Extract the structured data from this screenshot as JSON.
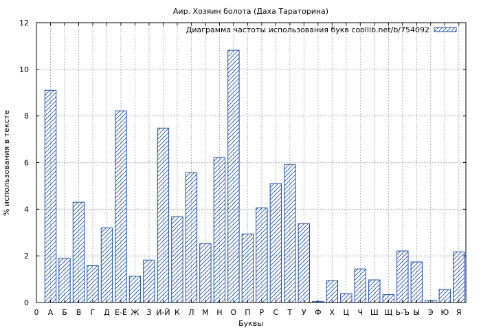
{
  "chart_data": {
    "type": "bar",
    "title": "Аир. Хозяин болота (Даха Тараторина)",
    "xlabel": "Буквы",
    "ylabel": "% использования в тексте",
    "ylim": [
      0,
      12
    ],
    "yticks": [
      0,
      2,
      4,
      6,
      8,
      10,
      12
    ],
    "grid": true,
    "legend_position": "top-right",
    "categories": [
      "0",
      "А",
      "Б",
      "В",
      "Г",
      "Д",
      "Е-Ё",
      "Ж",
      "З",
      "И-Й",
      "К",
      "Л",
      "М",
      "Н",
      "О",
      "П",
      "Р",
      "С",
      "Т",
      "У",
      "Ф",
      "Х",
      "Ц",
      "Ч",
      "Ш",
      "Щ",
      "Ь-Ъ",
      "Ы",
      "Э",
      "Ю",
      "Я"
    ],
    "series": [
      {
        "name": "Диаграмма частоты использования букв coollib.net/b/754092",
        "color": "#1a4ea1",
        "values": [
          0,
          9.1,
          1.9,
          4.3,
          1.58,
          3.2,
          8.22,
          1.13,
          1.82,
          7.48,
          3.68,
          5.57,
          2.53,
          6.22,
          10.82,
          2.94,
          4.06,
          5.1,
          5.92,
          3.38,
          0.04,
          0.94,
          0.38,
          1.44,
          0.97,
          0.34,
          2.21,
          1.74,
          0.09,
          0.56,
          2.17
        ]
      }
    ]
  }
}
